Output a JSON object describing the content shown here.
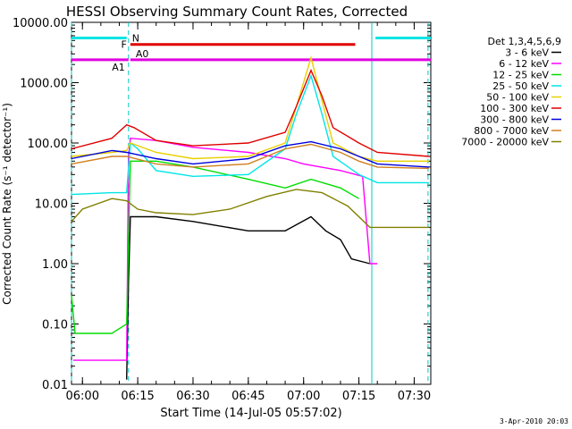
{
  "chart_data": {
    "type": "line",
    "title": "HESSI Observing Summary Count Rates, Corrected",
    "xlabel": "Start Time (14-Jul-05 05:57:02)",
    "ylabel": "Corrected Count Rate (s⁻¹ detector⁻¹)",
    "yscale": "log",
    "ylim": [
      0.01,
      10000
    ],
    "xlim": [
      "05:57:02",
      "07:34:30"
    ],
    "x_ticks": [
      "06:00",
      "06:15",
      "06:30",
      "06:45",
      "07:00",
      "07:15",
      "07:30"
    ],
    "y_ticks": [
      "0.01",
      "0.10",
      "1.00",
      "10.00",
      "100.00",
      "1000.00",
      "10000.00"
    ],
    "timestamp": "3-Apr-2010 20:03",
    "legend": {
      "header": "Det 1,3,4,5,6,9",
      "position": "right"
    },
    "flag_bars": [
      {
        "label": "N",
        "color": "#00e5e5",
        "segments": [
          [
            "05:57:02",
            "06:12:00"
          ],
          [
            "07:19:30",
            "07:34:30"
          ]
        ],
        "level": 5500
      },
      {
        "label": "F",
        "color": "#e00000",
        "segments": [
          [
            "06:13:00",
            "07:14:00"
          ]
        ],
        "level": 4300
      },
      {
        "label": "A0",
        "color": "#e000e0",
        "segments": [
          [
            "06:13:00",
            "07:34:30"
          ]
        ],
        "level": 2400
      },
      {
        "label": "A1",
        "color": "#e000e0",
        "segments": [
          [
            "05:57:02",
            "06:12:30"
          ]
        ],
        "level": 2400
      }
    ],
    "vlines": [
      {
        "time": "05:57:02",
        "style": "dashed",
        "color": "#00c8c8"
      },
      {
        "time": "06:12:30",
        "style": "dashed",
        "color": "#00c8c8"
      },
      {
        "time": "07:18:30",
        "style": "solid",
        "color": "#00c8c8"
      },
      {
        "time": "07:33:45",
        "style": "dashed",
        "color": "#00c8c8"
      }
    ],
    "series": [
      {
        "name": "3 - 6 keV",
        "color": "#000000",
        "points": [
          [
            "06:12",
            0.012
          ],
          [
            "06:12:30",
            0.5
          ],
          [
            "06:13",
            6
          ],
          [
            "06:20",
            6
          ],
          [
            "06:30",
            5
          ],
          [
            "06:45",
            3.5
          ],
          [
            "06:55",
            3.5
          ],
          [
            "07:02",
            6
          ],
          [
            "07:06",
            3.5
          ],
          [
            "07:10",
            2.5
          ],
          [
            "07:13",
            1.2
          ],
          [
            "07:18",
            1.0
          ]
        ]
      },
      {
        "name": "6 - 12 keV",
        "color": "#ff00ff",
        "points": [
          [
            "05:57:30",
            0.025
          ],
          [
            "06:08",
            0.025
          ],
          [
            "06:12",
            0.025
          ],
          [
            "06:12:30",
            60
          ],
          [
            "06:13",
            120
          ],
          [
            "06:20",
            110
          ],
          [
            "06:30",
            85
          ],
          [
            "06:45",
            70
          ],
          [
            "06:55",
            55
          ],
          [
            "07:00",
            45
          ],
          [
            "07:10",
            35
          ],
          [
            "07:16",
            28
          ],
          [
            "07:18",
            1.0
          ],
          [
            "07:20",
            1.0
          ]
        ]
      },
      {
        "name": "12 - 25 keV",
        "color": "#00dd00",
        "points": [
          [
            "05:57:02",
            0.3
          ],
          [
            "05:58",
            0.07
          ],
          [
            "06:08",
            0.07
          ],
          [
            "06:12",
            0.1
          ],
          [
            "06:13",
            50
          ],
          [
            "06:20",
            50
          ],
          [
            "06:30",
            40
          ],
          [
            "06:45",
            25
          ],
          [
            "06:55",
            18
          ],
          [
            "07:02",
            25
          ],
          [
            "07:10",
            18
          ],
          [
            "07:15",
            12
          ]
        ]
      },
      {
        "name": "25 - 50 keV",
        "color": "#00e5e5",
        "points": [
          [
            "05:57:02",
            14
          ],
          [
            "06:08",
            15
          ],
          [
            "06:12",
            15
          ],
          [
            "06:13",
            100
          ],
          [
            "06:15",
            80
          ],
          [
            "06:20",
            35
          ],
          [
            "06:30",
            28
          ],
          [
            "06:45",
            30
          ],
          [
            "06:55",
            80
          ],
          [
            "06:58",
            300
          ],
          [
            "07:02",
            1300
          ],
          [
            "07:05",
            300
          ],
          [
            "07:08",
            60
          ],
          [
            "07:15",
            30
          ],
          [
            "07:20",
            22
          ],
          [
            "07:34",
            22
          ]
        ]
      },
      {
        "name": "50 - 100 keV",
        "color": "#e8d000",
        "points": [
          [
            "05:57:02",
            60
          ],
          [
            "06:08",
            70
          ],
          [
            "06:12",
            75
          ],
          [
            "06:13",
            100
          ],
          [
            "06:20",
            70
          ],
          [
            "06:30",
            55
          ],
          [
            "06:45",
            60
          ],
          [
            "06:55",
            100
          ],
          [
            "06:58",
            400
          ],
          [
            "07:02",
            2600
          ],
          [
            "07:05",
            500
          ],
          [
            "07:08",
            100
          ],
          [
            "07:15",
            60
          ],
          [
            "07:20",
            50
          ],
          [
            "07:34",
            50
          ]
        ]
      },
      {
        "name": "100 - 300 keV",
        "color": "#e00000",
        "points": [
          [
            "05:57:02",
            80
          ],
          [
            "06:08",
            120
          ],
          [
            "06:12",
            200
          ],
          [
            "06:14",
            180
          ],
          [
            "06:20",
            110
          ],
          [
            "06:30",
            90
          ],
          [
            "06:45",
            100
          ],
          [
            "06:55",
            150
          ],
          [
            "06:58",
            400
          ],
          [
            "07:02",
            1600
          ],
          [
            "07:05",
            600
          ],
          [
            "07:08",
            180
          ],
          [
            "07:15",
            100
          ],
          [
            "07:20",
            70
          ],
          [
            "07:34",
            60
          ]
        ]
      },
      {
        "name": "300 - 800 keV",
        "color": "#0000dd",
        "points": [
          [
            "05:57:02",
            55
          ],
          [
            "06:08",
            75
          ],
          [
            "06:12",
            70
          ],
          [
            "06:20",
            55
          ],
          [
            "06:30",
            45
          ],
          [
            "06:45",
            55
          ],
          [
            "06:55",
            90
          ],
          [
            "07:02",
            105
          ],
          [
            "07:10",
            80
          ],
          [
            "07:15",
            60
          ],
          [
            "07:20",
            45
          ],
          [
            "07:34",
            40
          ]
        ]
      },
      {
        "name": "800 - 7000 keV",
        "color": "#d08020",
        "points": [
          [
            "05:57:02",
            45
          ],
          [
            "06:08",
            60
          ],
          [
            "06:12",
            60
          ],
          [
            "06:20",
            45
          ],
          [
            "06:30",
            40
          ],
          [
            "06:45",
            45
          ],
          [
            "06:55",
            80
          ],
          [
            "07:02",
            95
          ],
          [
            "07:10",
            70
          ],
          [
            "07:15",
            50
          ],
          [
            "07:20",
            40
          ],
          [
            "07:34",
            38
          ]
        ]
      },
      {
        "name": "7000 - 20000 keV",
        "color": "#808000",
        "points": [
          [
            "05:57:02",
            5
          ],
          [
            "06:00",
            8
          ],
          [
            "06:08",
            12
          ],
          [
            "06:12",
            11
          ],
          [
            "06:15",
            8
          ],
          [
            "06:20",
            7
          ],
          [
            "06:30",
            6.5
          ],
          [
            "06:40",
            8
          ],
          [
            "06:50",
            13
          ],
          [
            "06:58",
            17
          ],
          [
            "07:05",
            15
          ],
          [
            "07:12",
            9
          ],
          [
            "07:18",
            4
          ],
          [
            "07:34",
            4
          ]
        ]
      }
    ]
  }
}
